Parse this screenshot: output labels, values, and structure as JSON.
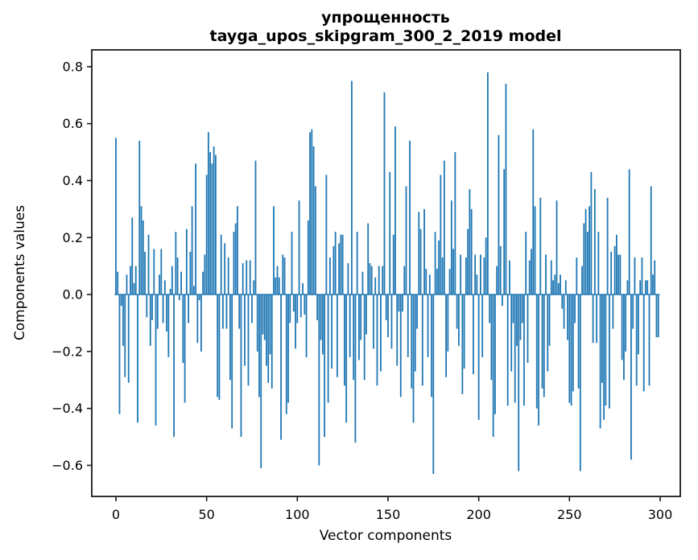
{
  "figure": {
    "title": "упрощенность",
    "subtitle": "tayga_upos_skipgram_300_2_2019 model"
  },
  "chart_data": {
    "type": "bar",
    "title": "упрощенность",
    "subtitle": "tayga_upos_skipgram_300_2_2019 model",
    "xlabel": "Vector components",
    "ylabel": "Components values",
    "x_ticks": [
      0,
      50,
      100,
      150,
      200,
      250,
      300
    ],
    "y_ticks": [
      0.8,
      0.6,
      0.4,
      0.2,
      0.0,
      -0.2,
      -0.4,
      -0.6
    ],
    "xlim": [
      -13.3,
      311.1
    ],
    "ylim": [
      -0.709,
      0.859
    ],
    "grid": false,
    "legend": "none",
    "bar_color": "#1f77b4",
    "bar_width_data_units": 0.8,
    "x_start": 0,
    "values": [
      0.55,
      0.08,
      -0.42,
      -0.04,
      -0.18,
      -0.29,
      0.07,
      -0.31,
      0.1,
      0.27,
      0.04,
      0.1,
      -0.45,
      0.54,
      0.31,
      0.26,
      0.15,
      -0.08,
      0.21,
      -0.18,
      -0.09,
      0.16,
      -0.46,
      -0.12,
      0.07,
      0.16,
      -0.1,
      0.05,
      -0.13,
      -0.22,
      0.02,
      0.1,
      -0.5,
      0.22,
      0.13,
      -0.02,
      0.08,
      -0.24,
      -0.38,
      0.23,
      -0.1,
      0.15,
      0.31,
      0.03,
      0.46,
      -0.17,
      -0.02,
      -0.2,
      0.08,
      0.14,
      0.42,
      0.57,
      0.5,
      0.46,
      0.52,
      0.49,
      -0.36,
      -0.37,
      0.21,
      -0.12,
      0.18,
      -0.12,
      0.13,
      -0.3,
      -0.47,
      0.22,
      0.25,
      0.31,
      -0.12,
      -0.5,
      0.11,
      -0.25,
      0.12,
      -0.32,
      0.12,
      -0.1,
      0.05,
      0.47,
      -0.2,
      -0.36,
      -0.61,
      -0.14,
      -0.16,
      -0.25,
      -0.31,
      -0.21,
      -0.33,
      0.31,
      0.06,
      0.1,
      0.06,
      -0.51,
      0.14,
      0.13,
      -0.42,
      -0.38,
      -0.1,
      0.22,
      -0.06,
      -0.19,
      -0.1,
      0.33,
      -0.08,
      0.04,
      -0.07,
      -0.22,
      0.26,
      0.57,
      0.58,
      0.52,
      0.38,
      -0.09,
      -0.6,
      -0.16,
      -0.21,
      -0.5,
      0.42,
      -0.38,
      0.13,
      -0.26,
      0.17,
      0.22,
      -0.29,
      0.18,
      0.21,
      0.21,
      -0.32,
      -0.45,
      0.11,
      -0.22,
      0.75,
      -0.3,
      -0.52,
      0.22,
      -0.23,
      -0.16,
      0.08,
      -0.3,
      -0.14,
      0.25,
      0.11,
      0.1,
      -0.19,
      0.06,
      -0.32,
      0.1,
      -0.27,
      0.1,
      0.71,
      -0.09,
      -0.15,
      0.43,
      -0.19,
      0.21,
      0.59,
      -0.25,
      -0.06,
      -0.36,
      -0.06,
      0.1,
      0.38,
      -0.22,
      0.54,
      -0.33,
      -0.45,
      -0.27,
      -0.12,
      0.29,
      0.23,
      -0.32,
      0.3,
      0.09,
      -0.22,
      0.07,
      -0.36,
      -0.63,
      0.22,
      0.09,
      0.19,
      0.42,
      0.13,
      0.47,
      -0.29,
      -0.2,
      0.09,
      0.33,
      0.16,
      0.5,
      -0.12,
      -0.18,
      0.14,
      -0.35,
      -0.26,
      0.13,
      0.23,
      0.37,
      0.3,
      -0.28,
      0.14,
      0.07,
      -0.44,
      0.14,
      -0.22,
      0.13,
      0.2,
      0.78,
      -0.1,
      -0.3,
      -0.5,
      -0.42,
      0.1,
      0.56,
      0.17,
      -0.04,
      0.44,
      0.74,
      -0.39,
      0.12,
      -0.27,
      -0.1,
      -0.38,
      -0.18,
      -0.62,
      -0.16,
      -0.1,
      -0.39,
      0.22,
      -0.24,
      0.12,
      0.16,
      0.58,
      0.31,
      -0.4,
      -0.46,
      0.34,
      -0.33,
      -0.36,
      0.14,
      -0.27,
      -0.18,
      0.12,
      0.05,
      0.07,
      0.33,
      0.04,
      0.07,
      -0.05,
      -0.12,
      0.05,
      -0.16,
      -0.38,
      -0.39,
      -0.34,
      -0.1,
      0.13,
      -0.33,
      -0.62,
      0.1,
      0.25,
      0.3,
      0.22,
      0.31,
      0.43,
      -0.17,
      0.37,
      -0.17,
      0.22,
      -0.47,
      -0.31,
      -0.44,
      -0.39,
      0.34,
      -0.4,
      0.15,
      -0.12,
      0.17,
      0.21,
      0.14,
      0.14,
      -0.23,
      -0.3,
      -0.2,
      0.05,
      0.44,
      -0.58,
      -0.12,
      0.13,
      -0.32,
      -0.21,
      0.05,
      0.13,
      -0.34,
      0.05,
      0.05,
      -0.32,
      0.38,
      0.07,
      0.12,
      -0.15,
      -0.15
    ]
  },
  "layout_text": {
    "y_tick_labels": [
      "0.8",
      "0.6",
      "0.4",
      "0.2",
      "0.0",
      "−0.2",
      "−0.4",
      "−0.6"
    ],
    "x_tick_labels": [
      "0",
      "50",
      "100",
      "150",
      "200",
      "250",
      "300"
    ]
  }
}
